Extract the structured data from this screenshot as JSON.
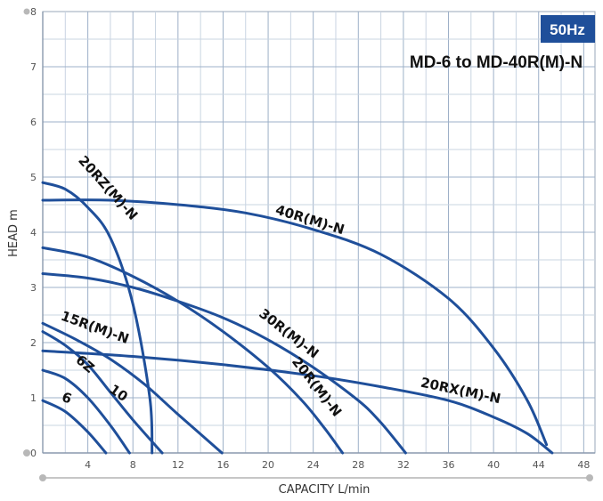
{
  "chart_data": {
    "type": "line",
    "title": "MD-6 to MD-40R(M)-N",
    "badge": "50Hz",
    "xlabel": "CAPACITY  L/min",
    "ylabel": "HEAD  m",
    "xlim": [
      0,
      49
    ],
    "ylim": [
      0,
      8
    ],
    "xticks": [
      4,
      8,
      12,
      16,
      20,
      24,
      28,
      32,
      36,
      40,
      44,
      48
    ],
    "yticks": [
      0,
      1,
      2,
      3,
      4,
      5,
      6,
      7,
      8
    ],
    "grid": true,
    "accent_color": "#1f4f9a",
    "series": [
      {
        "name": "6",
        "x": [
          0,
          2,
          4,
          5.6
        ],
        "y": [
          0.95,
          0.75,
          0.38,
          0
        ]
      },
      {
        "name": "6Z",
        "x": [
          0,
          2,
          4,
          6,
          7.7
        ],
        "y": [
          1.5,
          1.35,
          1.0,
          0.5,
          0
        ]
      },
      {
        "name": "10",
        "x": [
          0,
          2,
          4,
          6,
          8,
          10.6
        ],
        "y": [
          2.2,
          1.95,
          1.6,
          1.1,
          0.6,
          0
        ]
      },
      {
        "name": "15R(M)-N",
        "x": [
          0,
          3,
          6,
          9,
          12,
          15.9
        ],
        "y": [
          2.35,
          2.05,
          1.7,
          1.25,
          0.7,
          0
        ]
      },
      {
        "name": "20RZ(M)-N",
        "x": [
          0,
          2,
          4,
          6,
          8,
          9.5,
          9.7
        ],
        "y": [
          4.9,
          4.78,
          4.45,
          3.9,
          2.7,
          1.0,
          0
        ]
      },
      {
        "name": "40R(M)-N",
        "x": [
          0,
          6,
          12,
          18,
          24,
          30,
          36,
          40,
          43,
          44.7
        ],
        "y": [
          4.58,
          4.58,
          4.5,
          4.35,
          4.05,
          3.6,
          2.8,
          1.9,
          0.95,
          0.15
        ]
      },
      {
        "name": "30R(M)-N",
        "x": [
          0,
          4,
          8,
          12,
          16,
          20,
          24,
          28,
          30,
          32.2
        ],
        "y": [
          3.25,
          3.17,
          3.0,
          2.75,
          2.45,
          2.05,
          1.55,
          0.95,
          0.55,
          0
        ]
      },
      {
        "name": "20R(M)-N",
        "x": [
          0,
          4,
          8,
          12,
          16,
          20,
          23,
          25,
          26.6
        ],
        "y": [
          3.72,
          3.55,
          3.2,
          2.75,
          2.2,
          1.55,
          0.95,
          0.45,
          0
        ]
      },
      {
        "name": "20RX(M)-N",
        "x": [
          0,
          8,
          16,
          24,
          30,
          36,
          40,
          43,
          45.2
        ],
        "y": [
          1.85,
          1.75,
          1.6,
          1.4,
          1.2,
          0.95,
          0.65,
          0.35,
          0
        ]
      }
    ],
    "labels": [
      {
        "text": "6",
        "x": 2.0,
        "y": 0.92,
        "angle": 20
      },
      {
        "text": "6Z",
        "x": 3.5,
        "y": 1.55,
        "angle": 40
      },
      {
        "text": "10",
        "x": 6.5,
        "y": 1.02,
        "angle": 35
      },
      {
        "text": "15R(M)-N",
        "x": 4.5,
        "y": 2.2,
        "angle": 20
      },
      {
        "text": "20RZ(M)-N",
        "x": 5.5,
        "y": 4.75,
        "angle": 48
      },
      {
        "text": "40R(M)-N",
        "x": 23.6,
        "y": 4.15,
        "angle": 17
      },
      {
        "text": "30R(M)-N",
        "x": 21.6,
        "y": 2.1,
        "angle": 38
      },
      {
        "text": "20R(M)-N",
        "x": 24.0,
        "y": 1.15,
        "angle": 52
      },
      {
        "text": "20RX(M)-N",
        "x": 37.0,
        "y": 1.05,
        "angle": 12
      }
    ]
  }
}
